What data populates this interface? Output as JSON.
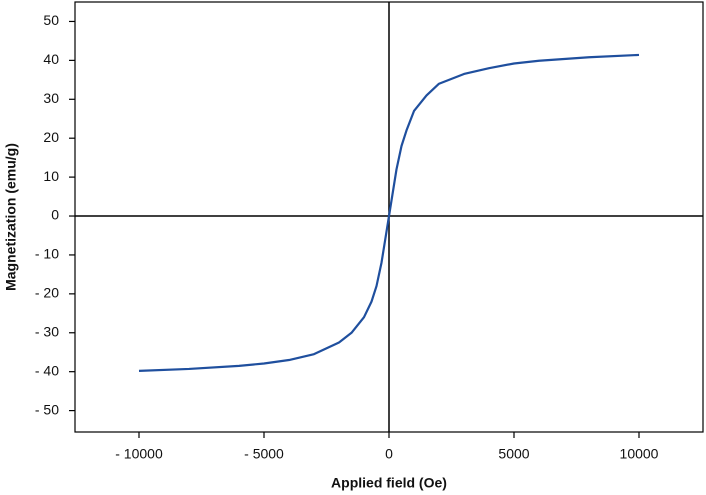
{
  "chart_data": {
    "type": "line",
    "x_label": "Applied field (Oe)",
    "y_label": "Magnetization (emu/g)",
    "xlim": [
      -12560,
      12560
    ],
    "ylim": [
      -55.5,
      55
    ],
    "xticks": [
      {
        "value": -10000,
        "label": "- 10000"
      },
      {
        "value": -5000,
        "label": "- 5000"
      },
      0,
      5000,
      10000
    ],
    "yticks": [
      {
        "value": -50,
        "label": "- 50"
      },
      {
        "value": -40,
        "label": "- 40"
      },
      {
        "value": -30,
        "label": "- 30"
      },
      {
        "value": -20,
        "label": "- 20"
      },
      {
        "value": -10,
        "label": "- 10"
      },
      0,
      10,
      20,
      30,
      40,
      50
    ],
    "zero_lines": true,
    "x": [
      -10000,
      -8000,
      -6000,
      -5000,
      -4000,
      -3000,
      -2000,
      -1500,
      -1000,
      -700,
      -500,
      -300,
      -150,
      0,
      150,
      300,
      500,
      700,
      1000,
      1500,
      2000,
      3000,
      4000,
      5000,
      6000,
      8000,
      10000
    ],
    "series": [
      {
        "color": "#1f4f9e",
        "values": [
          -39.8,
          -39.3,
          -38.5,
          -37.9,
          -37.0,
          -35.5,
          -32.5,
          -30,
          -26,
          -22,
          -18,
          -12,
          -6,
          0,
          6,
          12,
          18,
          22,
          27,
          31,
          34,
          36.5,
          38,
          39.2,
          39.9,
          40.8,
          41.4
        ]
      }
    ]
  }
}
